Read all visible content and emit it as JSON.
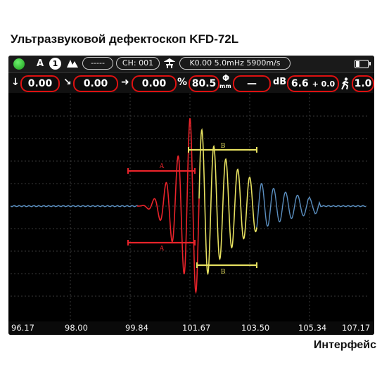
{
  "title": "Ультразвуковой дефектоскоп KFD-72L",
  "caption": "Интерфейс",
  "status_bar": {
    "mode": "A",
    "channel_index": "1",
    "gate_pill": "-----",
    "channel": "CH: 001",
    "probe_info": "K0.00  5.0mHz  5900m/s"
  },
  "readouts": {
    "depth_down": "0.00",
    "depth_diag": "0.00",
    "depth_horiz": "0.00",
    "percent_symbol": "%",
    "amplitude": "80.5",
    "phi_symbol": "Φ",
    "phi_unit": "mm",
    "phi_value": "—",
    "db_symbol": "dB",
    "gain": "6.6",
    "gain_offset": "+ 0.0",
    "step": "1.0"
  },
  "gates": {
    "a_label": "A",
    "b_label": "B"
  },
  "colors": {
    "gate_a": "#e8232a",
    "gate_b": "#e6e060",
    "baseline": "#5b8fc0",
    "accent_border": "#d11111"
  },
  "x_axis": {
    "ticks": [
      "96.17",
      "98.00",
      "99.84",
      "101.67",
      "103.50",
      "105.34",
      "107.17"
    ]
  }
}
